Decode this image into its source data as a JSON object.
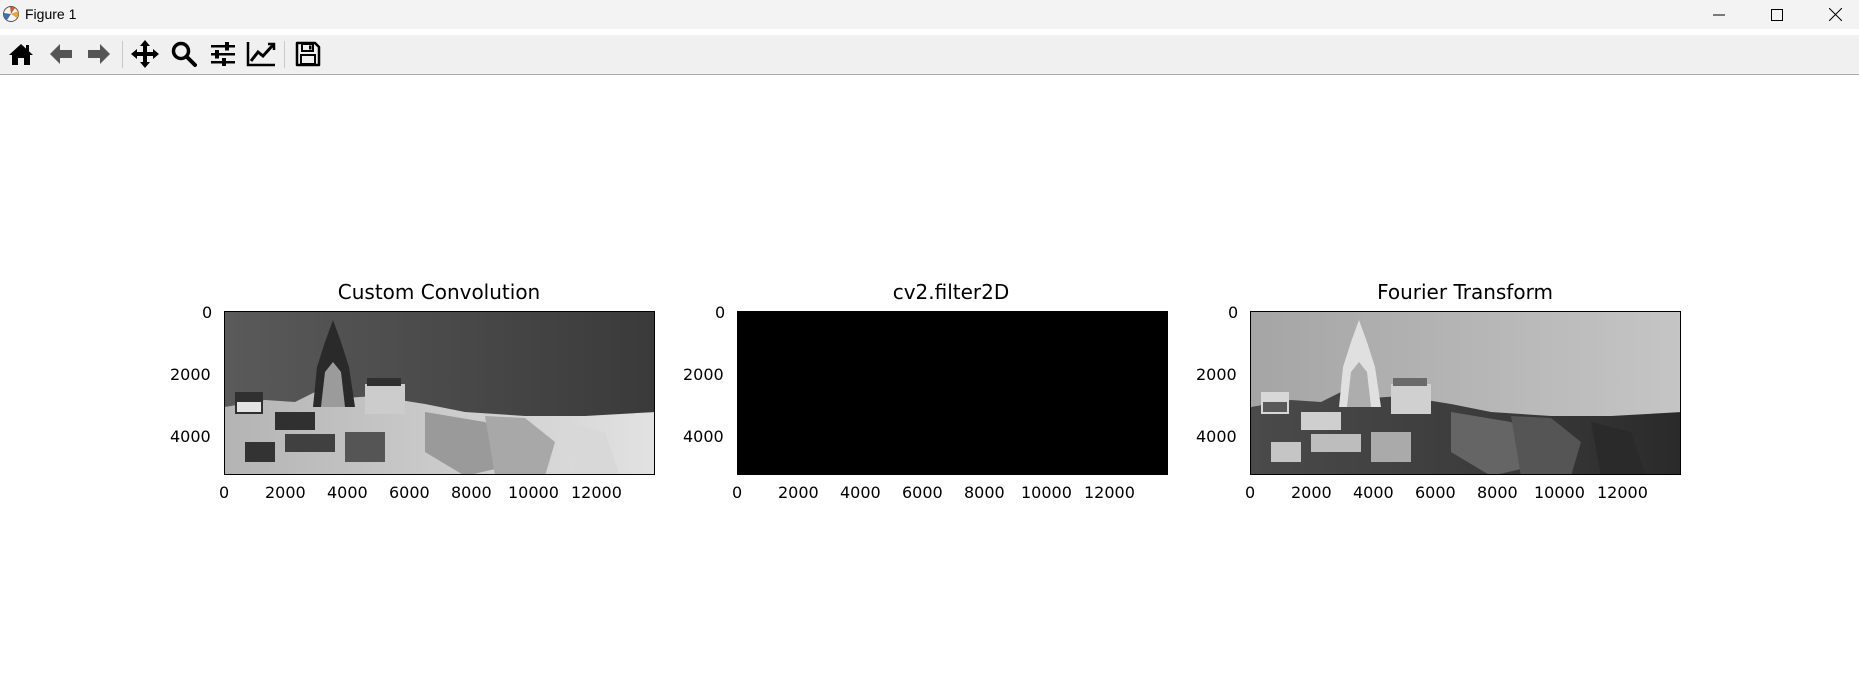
{
  "window": {
    "title": "Figure 1",
    "controls": [
      "minimize",
      "maximize",
      "close"
    ]
  },
  "toolbar": {
    "tools": [
      {
        "name": "home",
        "icon": "home-icon"
      },
      {
        "name": "back",
        "icon": "arrow-left-icon"
      },
      {
        "name": "forward",
        "icon": "arrow-right-icon"
      },
      {
        "name": "pan",
        "icon": "move-icon"
      },
      {
        "name": "zoom",
        "icon": "magnifier-icon"
      },
      {
        "name": "configure-subplots",
        "icon": "sliders-icon"
      },
      {
        "name": "edit-axes",
        "icon": "line-chart-icon"
      },
      {
        "name": "save",
        "icon": "floppy-disk-icon"
      }
    ]
  },
  "figure": {
    "subplots": [
      {
        "title": "Custom Convolution",
        "content": "grayscale image (inverted / edge-filtered cityscape)",
        "x_ticks": [
          "0",
          "2000",
          "4000",
          "6000",
          "8000",
          "10000",
          "12000"
        ],
        "y_ticks": [
          "0",
          "2000",
          "4000"
        ]
      },
      {
        "title": "cv2.filter2D",
        "content": "solid black image",
        "x_ticks": [
          "0",
          "2000",
          "4000",
          "6000",
          "8000",
          "10000",
          "12000"
        ],
        "y_ticks": [
          "0",
          "2000",
          "4000"
        ]
      },
      {
        "title": "Fourier Transform",
        "content": "grayscale image (cityscape with cathedral)",
        "x_ticks": [
          "0",
          "2000",
          "4000",
          "6000",
          "8000",
          "10000",
          "12000"
        ],
        "y_ticks": [
          "0",
          "2000",
          "4000"
        ]
      }
    ]
  }
}
